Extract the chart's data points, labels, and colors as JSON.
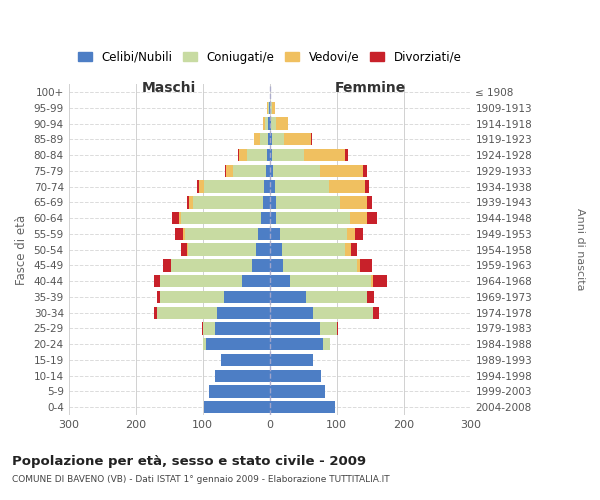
{
  "age_groups": [
    "0-4",
    "5-9",
    "10-14",
    "15-19",
    "20-24",
    "25-29",
    "30-34",
    "35-39",
    "40-44",
    "45-49",
    "50-54",
    "55-59",
    "60-64",
    "65-69",
    "70-74",
    "75-79",
    "80-84",
    "85-89",
    "90-94",
    "95-99",
    "100+"
  ],
  "birth_years": [
    "2004-2008",
    "1999-2003",
    "1994-1998",
    "1989-1993",
    "1984-1988",
    "1979-1983",
    "1974-1978",
    "1969-1973",
    "1964-1968",
    "1959-1963",
    "1954-1958",
    "1949-1953",
    "1944-1948",
    "1939-1943",
    "1934-1938",
    "1929-1933",
    "1924-1928",
    "1919-1923",
    "1914-1918",
    "1909-1913",
    "≤ 1908"
  ],
  "maschi": {
    "celibe": [
      98,
      90,
      82,
      72,
      95,
      82,
      78,
      68,
      42,
      27,
      20,
      17,
      13,
      10,
      8,
      5,
      4,
      3,
      2,
      1,
      0
    ],
    "coniugato": [
      0,
      0,
      0,
      0,
      5,
      18,
      90,
      95,
      122,
      120,
      102,
      110,
      120,
      105,
      90,
      50,
      30,
      12,
      5,
      2,
      0
    ],
    "vedovo": [
      0,
      0,
      0,
      0,
      0,
      0,
      0,
      0,
      0,
      0,
      1,
      2,
      3,
      5,
      8,
      10,
      12,
      8,
      3,
      1,
      0
    ],
    "divorziato": [
      0,
      0,
      0,
      0,
      0,
      1,
      4,
      5,
      8,
      12,
      10,
      12,
      10,
      4,
      3,
      2,
      1,
      1,
      0,
      0,
      0
    ]
  },
  "femmine": {
    "nubile": [
      98,
      82,
      76,
      65,
      80,
      75,
      65,
      55,
      30,
      20,
      18,
      15,
      10,
      10,
      8,
      5,
      4,
      3,
      2,
      1,
      0
    ],
    "coniugata": [
      0,
      0,
      0,
      0,
      10,
      25,
      90,
      90,
      122,
      110,
      95,
      100,
      110,
      95,
      80,
      70,
      48,
      18,
      8,
      2,
      0
    ],
    "vedova": [
      0,
      0,
      0,
      0,
      0,
      0,
      0,
      1,
      3,
      5,
      8,
      12,
      25,
      40,
      55,
      65,
      60,
      40,
      18,
      5,
      1
    ],
    "divorziata": [
      0,
      0,
      0,
      0,
      0,
      2,
      8,
      10,
      20,
      18,
      10,
      12,
      15,
      8,
      5,
      5,
      5,
      2,
      0,
      0,
      0
    ]
  },
  "colors": {
    "celibe_nubile": "#4d7ec5",
    "coniugato": "#c8dba2",
    "vedovo": "#f0c060",
    "divorziato": "#c8212a"
  },
  "xlim": 300,
  "title": "Popolazione per età, sesso e stato civile - 2009",
  "subtitle": "COMUNE DI BAVENO (VB) - Dati ISTAT 1° gennaio 2009 - Elaborazione TUTTITALIA.IT",
  "ylabel_left": "Fasce di età",
  "ylabel_right": "Anni di nascita",
  "xlabel_maschi": "Maschi",
  "xlabel_femmine": "Femmine",
  "legend_labels": [
    "Celibi/Nubili",
    "Coniugati/e",
    "Vedovi/e",
    "Divorziati/e"
  ],
  "bg_color": "#ffffff",
  "grid_color": "#cccccc"
}
